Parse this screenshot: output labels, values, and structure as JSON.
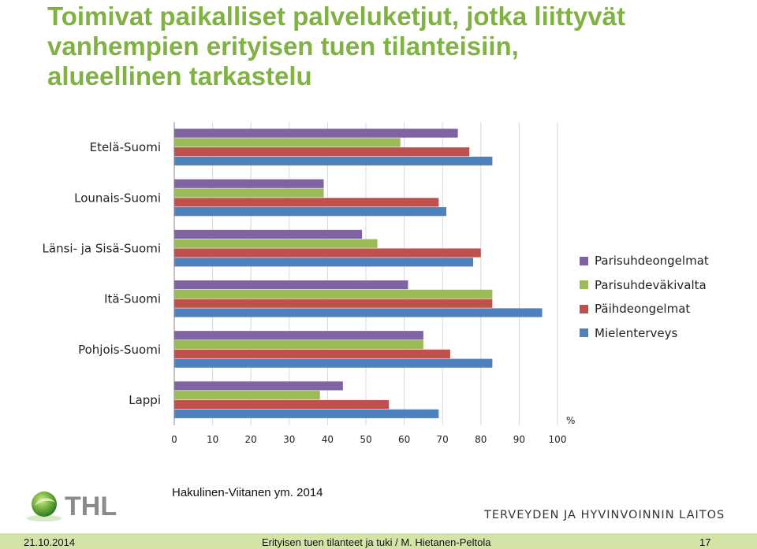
{
  "slide": {
    "title_lines": [
      "Toimivat paikalliset palveluketjut, jotka liittyvät",
      "vanhempien erityisen tuen tilanteisiin,",
      "alueellinen tarkastelu"
    ],
    "source": "Hakulinen-Viitanen ym. 2014",
    "logo_text": "THL",
    "organization": "TERVEYDEN JA HYVINVOINNIN LAITOS",
    "footer": {
      "date": "21.10.2014",
      "center": "Erityisen tuen tilanteet ja tuki / M. Hietanen-Peltola",
      "page": "17"
    }
  },
  "colors": {
    "title": "#7fb241",
    "footer_bar": "#d4e4a6",
    "logo_green": "#6aaa3a",
    "logo_gray": "#8a8a8a"
  },
  "chart_data": {
    "type": "bar",
    "orientation": "horizontal",
    "categories": [
      "Etelä-Suomi",
      "Lounais-Suomi",
      "Länsi- ja Sisä-Suomi",
      "Itä-Suomi",
      "Pohjois-Suomi",
      "Lappi"
    ],
    "series": [
      {
        "name": "Parisuhdeongelmat",
        "color": "#8064a2",
        "values": [
          74,
          39,
          49,
          61,
          65,
          44
        ]
      },
      {
        "name": "Parisuhdeväkivalta",
        "color": "#9bbb59",
        "values": [
          59,
          39,
          53,
          83,
          65,
          38
        ]
      },
      {
        "name": "Päihdeongelmat",
        "color": "#c0504d",
        "values": [
          77,
          69,
          80,
          83,
          72,
          56
        ]
      },
      {
        "name": "Mielenterveys",
        "color": "#4f81bd",
        "values": [
          83,
          71,
          78,
          96,
          83,
          69
        ]
      }
    ],
    "x_ticks": [
      "0",
      "10",
      "20",
      "30",
      "40",
      "50",
      "60",
      "70",
      "80",
      "90",
      "100"
    ],
    "xlim": [
      0,
      100
    ],
    "unit_label": "%",
    "grid": "vertical lines",
    "legend_position": "right"
  }
}
